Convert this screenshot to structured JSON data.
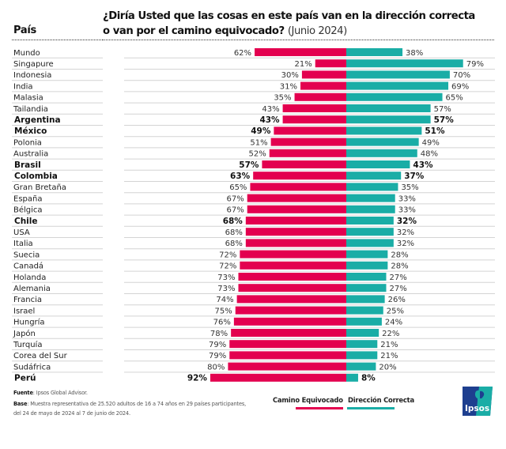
{
  "header": {
    "column_label": "País",
    "title_line1": "¿Diría Usted que las cosas en este país van en la dirección correcta",
    "title_line2": "o van por el camino equivocado?",
    "title_date": "(Junio 2024)"
  },
  "colors": {
    "wrong_track": "#E3004F",
    "right_direction": "#1AADA6"
  },
  "chart_data": {
    "type": "bar",
    "orientation": "diverging-horizontal",
    "title": "¿Diría Usted que las cosas en este país van en la dirección correcta o van por el camino equivocado? (Junio 2024)",
    "xlabel": "",
    "ylabel": "País",
    "xlim": [
      -100,
      100
    ],
    "grid": false,
    "legend_position": "bottom-center",
    "categories": [
      "Mundo",
      "Singapure",
      "Indonesia",
      "India",
      "Malasia",
      "Tailandia",
      "Argentina",
      "México",
      "Polonia",
      "Australia",
      "Brasil",
      "Colombia",
      "Gran Bretaña",
      "España",
      "Bélgica",
      "Chile",
      "USA",
      "Italia",
      "Suecia",
      "Canadá",
      "Holanda",
      "Alemania",
      "Francia",
      "Israel",
      "Hungría",
      "Japón",
      "Turquía",
      "Corea del Sur",
      "Sudáfrica",
      "Perú"
    ],
    "highlighted": [
      "Argentina",
      "México",
      "Brasil",
      "Colombia",
      "Chile",
      "Perú"
    ],
    "series": [
      {
        "name": "Camino Equivocado",
        "side": "left",
        "values": [
          62,
          21,
          30,
          31,
          35,
          43,
          43,
          49,
          51,
          52,
          57,
          63,
          65,
          67,
          67,
          68,
          68,
          68,
          72,
          72,
          73,
          73,
          74,
          75,
          76,
          78,
          79,
          79,
          80,
          92
        ]
      },
      {
        "name": "Dirección Correcta",
        "side": "right",
        "values": [
          38,
          79,
          70,
          69,
          65,
          57,
          57,
          51,
          49,
          48,
          43,
          37,
          35,
          33,
          33,
          32,
          32,
          32,
          28,
          28,
          27,
          27,
          26,
          25,
          24,
          22,
          21,
          21,
          20,
          8
        ]
      }
    ],
    "value_suffix": "%"
  },
  "footer": {
    "source_label": "Fuente",
    "source_text": ": Ipsos Global Advisor.",
    "base_label": "Base",
    "base_text_line1": ":  Muestra representativa de 25.520 adultos de 16 a 74 años en 29 países participantes,",
    "base_text_line2": "del 24 de mayo de 2024 al 7 de junio de 2024."
  },
  "legend": {
    "wrong_track_label": "Camino Equivocado",
    "right_direction_label": "Dirección Correcta"
  },
  "logo": {
    "text": "Ipsos",
    "icon": "ipsos-head-logo"
  }
}
